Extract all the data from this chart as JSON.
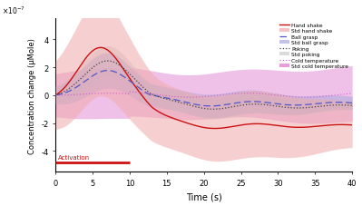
{
  "xlabel": "Time (s)",
  "ylabel": "Concentration change (μMole)",
  "xlim": [
    0,
    40
  ],
  "ylim": [
    -5.5,
    5.5
  ],
  "xticks": [
    0,
    5,
    10,
    15,
    20,
    25,
    30,
    35,
    40
  ],
  "yticks": [
    -4,
    -2,
    0,
    2,
    4
  ],
  "activation_label": "Activation",
  "activation_x0": 0,
  "activation_x1": 10,
  "hand_shake_color": "#cc1111",
  "hand_shake_std_color": "#f0aaaa",
  "ball_grasp_color": "#5555cc",
  "ball_grasp_std_color": "#aaaadd",
  "poking_color": "#444444",
  "poking_std_color": "#cccccc",
  "cold_temp_color": "#cc44cc",
  "cold_temp_std_color": "#dd77cc",
  "background_color": "#ffffff"
}
